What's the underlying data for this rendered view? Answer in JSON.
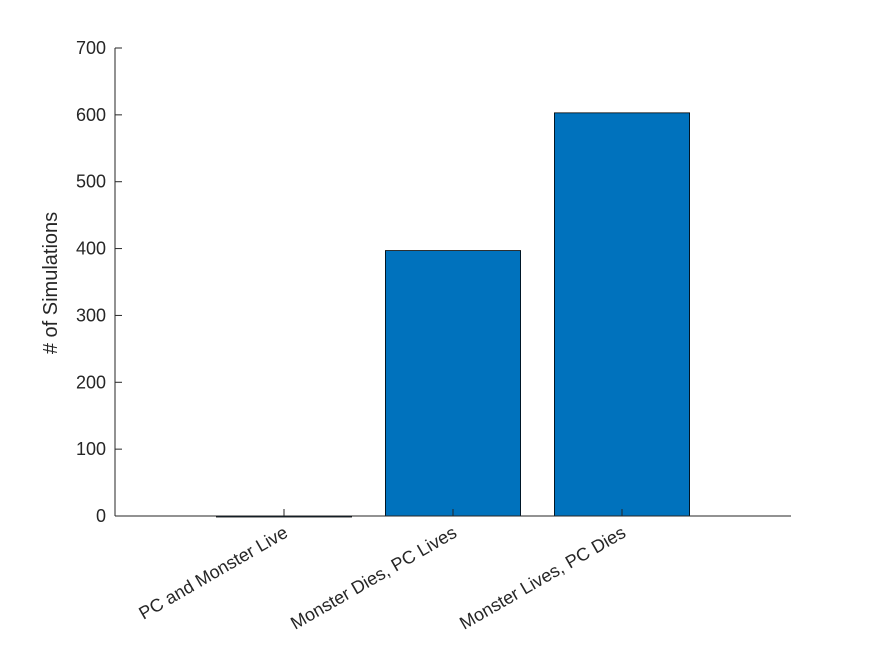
{
  "chart_data": {
    "type": "bar",
    "title": "",
    "xlabel": "",
    "ylabel": "# of Simulations",
    "categories": [
      "PC and Monster Live",
      "Monster Dies, PC Lives",
      "Monster Lives, PC Dies"
    ],
    "values": [
      0,
      397,
      603
    ],
    "ylim": [
      0,
      700
    ],
    "yticks": [
      0,
      100,
      200,
      300,
      400,
      500,
      600,
      700
    ],
    "grid": false,
    "legend": "none",
    "bar_color": "#0072BD",
    "axis_color": "#262626"
  }
}
